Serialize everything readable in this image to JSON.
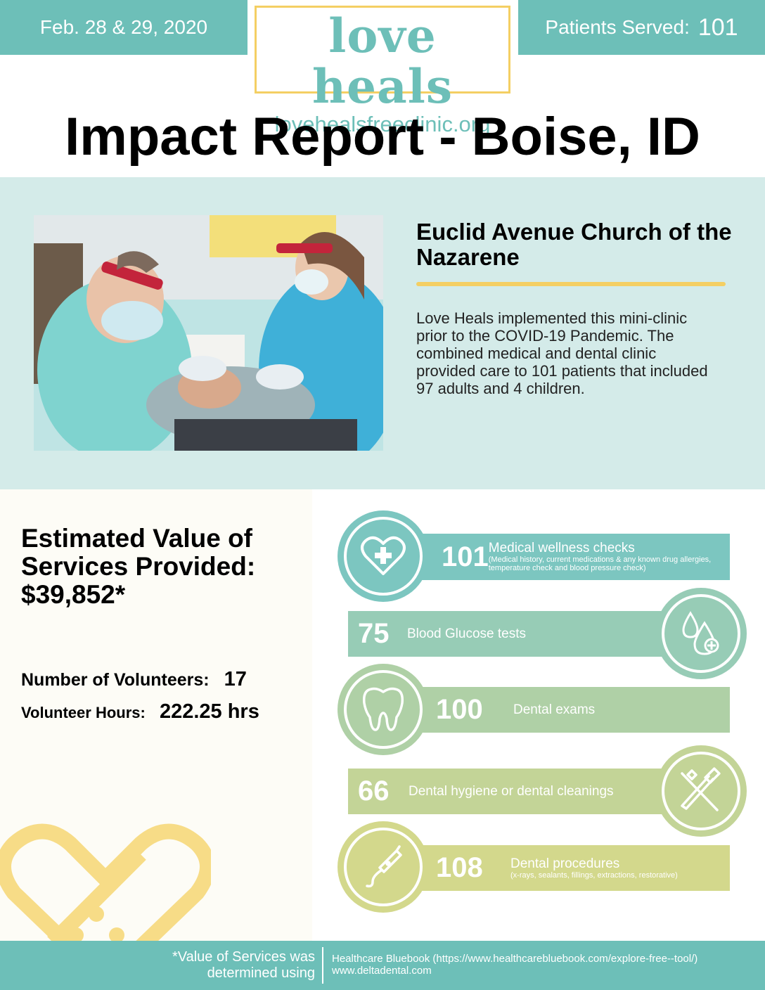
{
  "header": {
    "date": "Feb. 28 & 29, 2020",
    "patients_label": "Patients Served:",
    "patients_value": "101",
    "logo_word": "love heals",
    "logo_url": "lovehealsfreeclinic.org",
    "title": "Impact Report - Boise, ID"
  },
  "intro": {
    "church": "Euclid Avenue Church of the Nazarene",
    "text": "Love Heals implemented this mini-clinic prior to the COVID-19 Pandemic. The combined medical and dental clinic provided care to 101 patients that included 97 adults and 4 children."
  },
  "summary": {
    "value_heading": "Estimated Value of Services Provided: $39,852*",
    "volunteers_label": "Number of Volunteers:",
    "volunteers_value": "17",
    "hours_label": "Volunteer Hours:",
    "hours_value": "222.25 hrs"
  },
  "stats": [
    {
      "value": "101",
      "label": "Medical wellness checks",
      "sub": "(Medical history, current medications & any known drug allergies, temperature check and blood pressure check)",
      "icon": "heart-cross-icon",
      "color": "#7cc6c0"
    },
    {
      "value": "75",
      "label": "Blood Glucose tests",
      "sub": "",
      "icon": "blood-drops-icon",
      "color": "#97ccb6"
    },
    {
      "value": "100",
      "label": "Dental exams",
      "sub": "",
      "icon": "tooth-icon",
      "color": "#afd0a6"
    },
    {
      "value": "66",
      "label": "Dental hygiene or dental cleanings",
      "sub": "",
      "icon": "toothbrush-icon",
      "color": "#c3d497"
    },
    {
      "value": "108",
      "label": "Dental procedures",
      "sub": "(x-rays, sealants, fillings, extractions, restorative)",
      "icon": "dental-drill-icon",
      "color": "#d3d88c"
    }
  ],
  "footer": {
    "footnote": "*Value of Services was determined using",
    "source_1": "Healthcare Bluebook (https://www.healthcarebluebook.com/explore-free--tool/)",
    "source_2": "www.deltadental.com"
  },
  "colors": {
    "teal": "#6dbfb8",
    "yellow": "#f4cf63",
    "mint_bg": "#d4ebe9"
  }
}
